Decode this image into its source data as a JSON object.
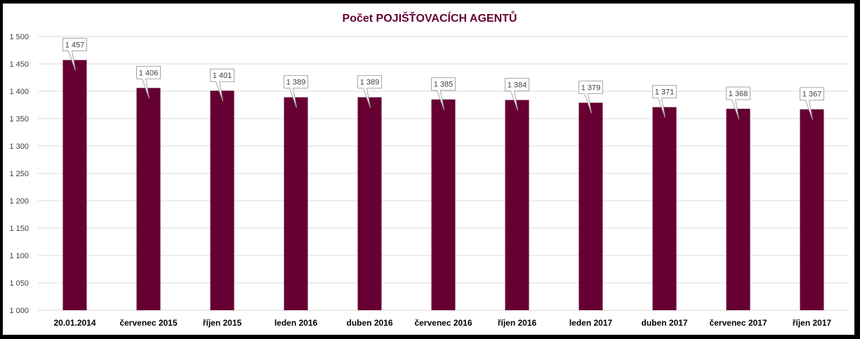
{
  "chart_data": {
    "type": "bar",
    "title": "Počet POJIŠŤOVACÍCH AGENTŮ",
    "categories": [
      "20.01.2014",
      "červenec 2015",
      "říjen 2015",
      "leden 2016",
      "duben 2016",
      "červenec 2016",
      "říjen 2016",
      "leden 2017",
      "duben 2017",
      "červenec 2017",
      "říjen 2017"
    ],
    "values": [
      1457,
      1406,
      1401,
      1389,
      1389,
      1385,
      1384,
      1379,
      1371,
      1368,
      1367
    ],
    "value_labels": [
      "1 457",
      "1 406",
      "1 401",
      "1 389",
      "1 389",
      "1 385",
      "1 384",
      "1 379",
      "1 371",
      "1 368",
      "1 367"
    ],
    "yticks": [
      "1 000",
      "1 050",
      "1 100",
      "1 150",
      "1 200",
      "1 250",
      "1 300",
      "1 350",
      "1 400",
      "1 450",
      "1 500"
    ],
    "ylim": [
      1000,
      1500
    ],
    "xlabel": "",
    "ylabel": "",
    "grid": true,
    "colors": {
      "bar": "#660033",
      "title": "#660033",
      "grid": "#d9d9d9"
    }
  }
}
